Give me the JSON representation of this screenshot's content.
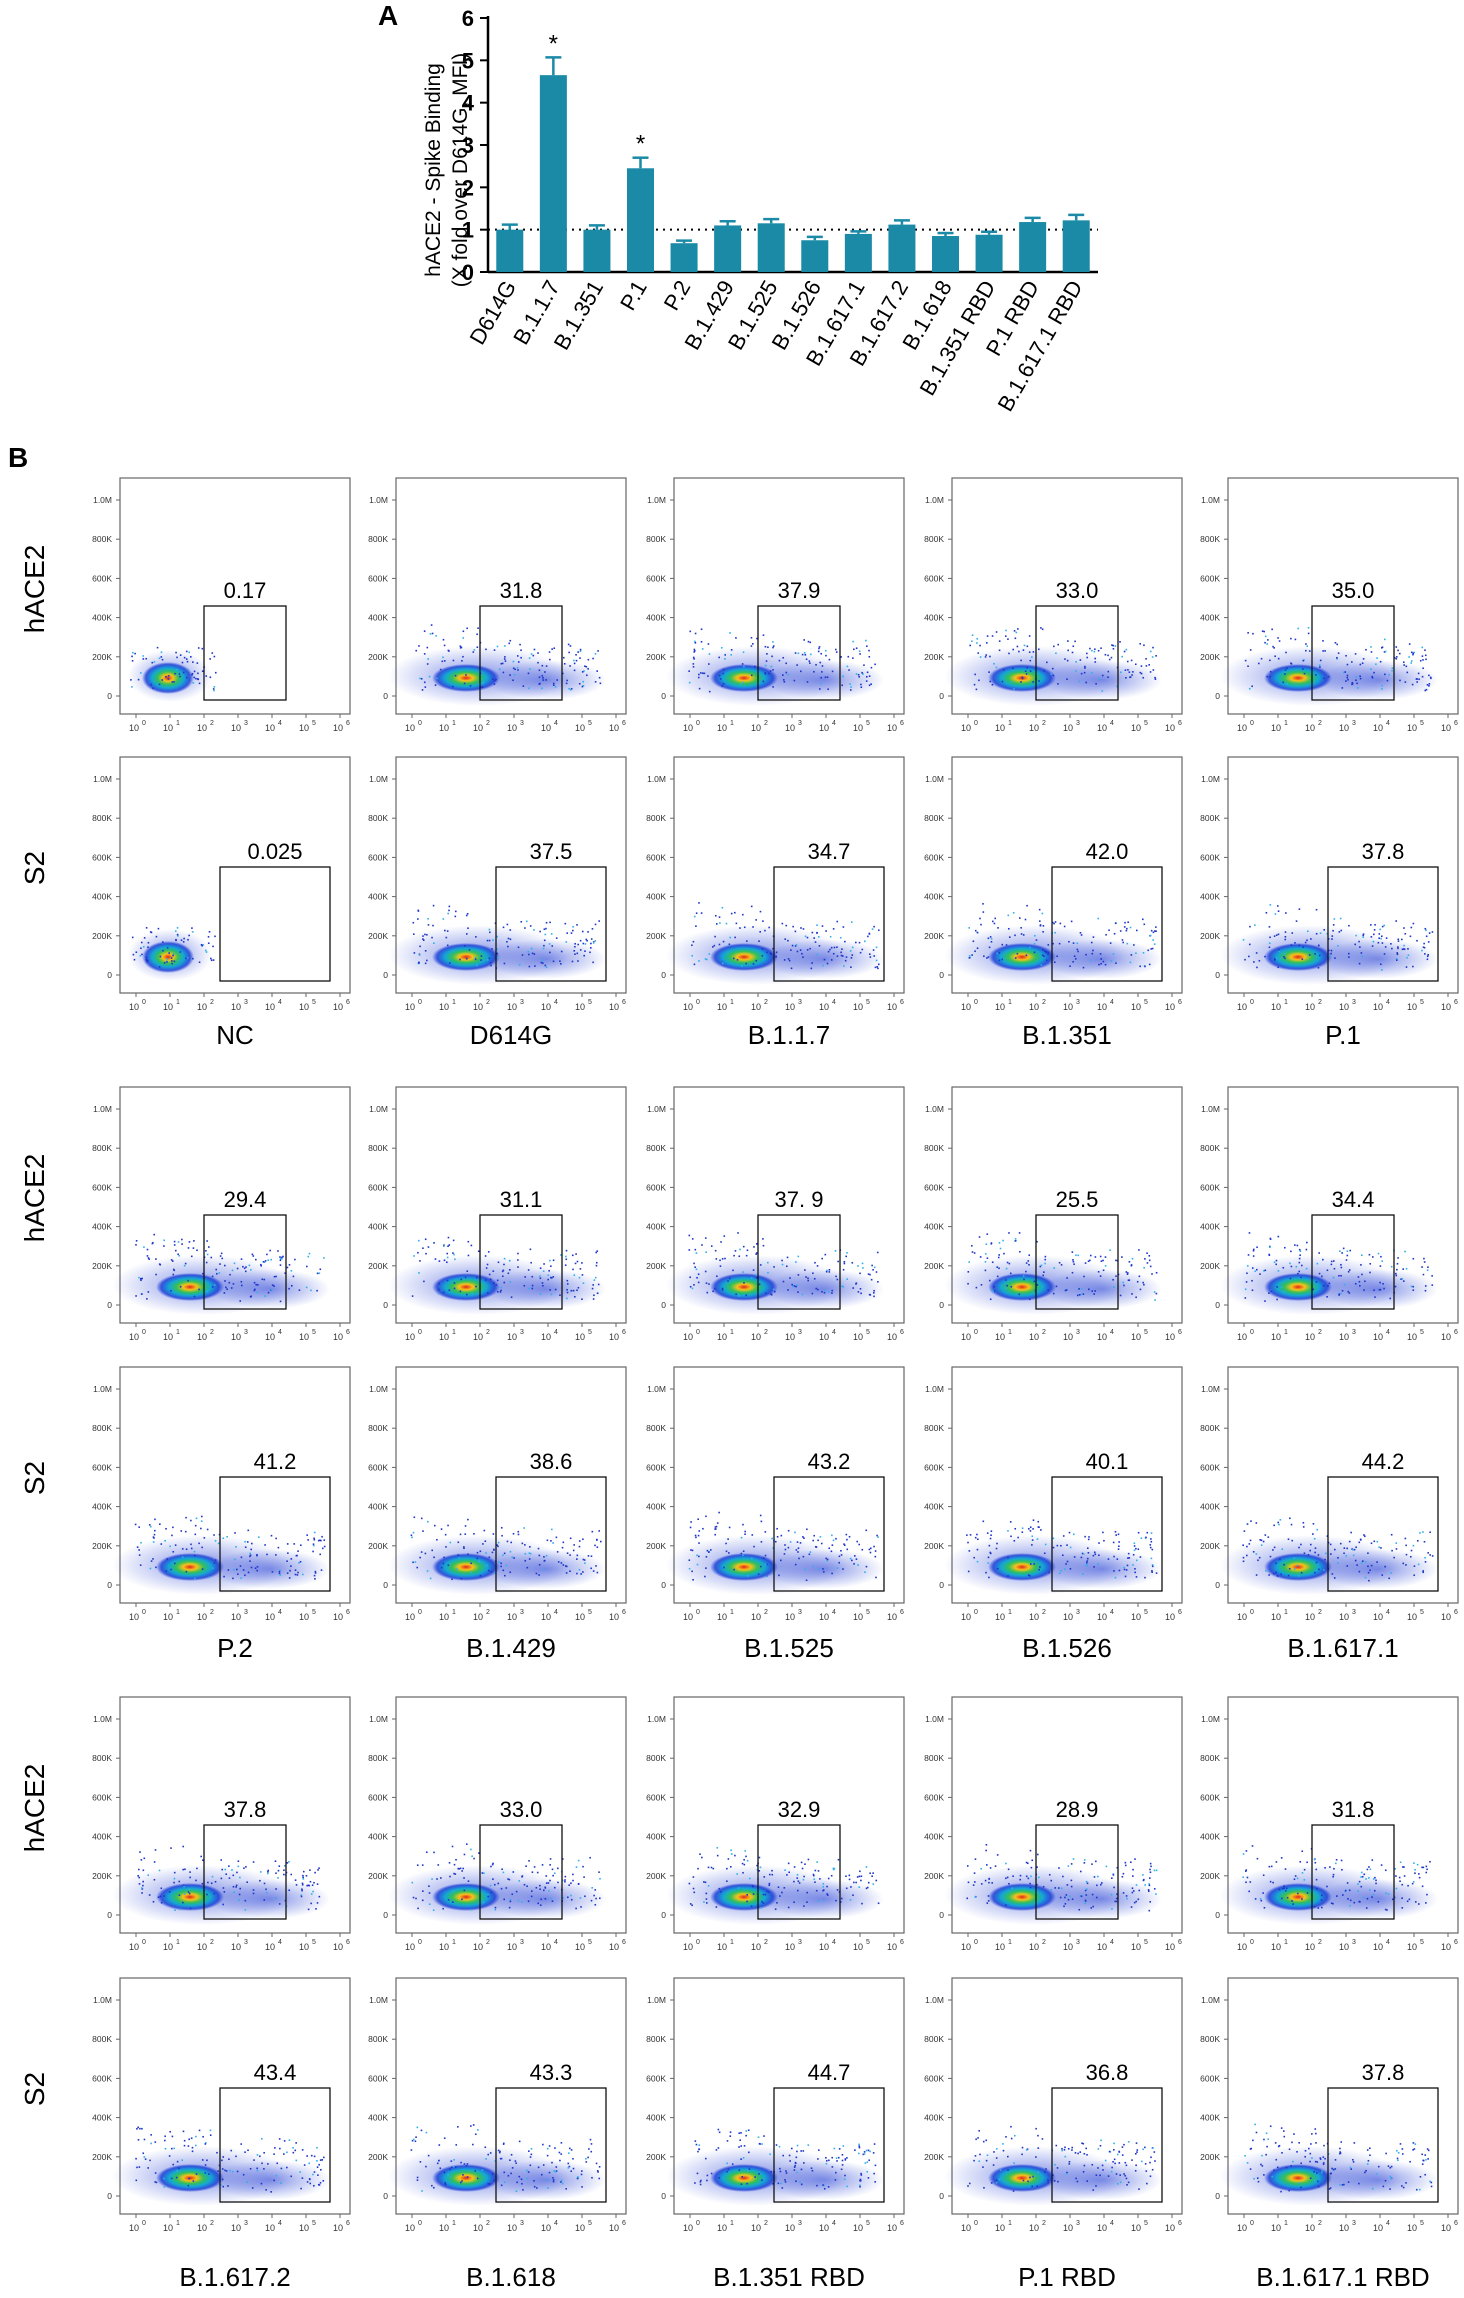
{
  "panel_a": {
    "letter": "A",
    "ylabel_line1": "hACE2 - Spike Binding",
    "ylabel_line2": "(X fold over D614G, MFI)"
  },
  "panel_b": {
    "letter": "B"
  },
  "chart_data": [
    {
      "type": "bar",
      "title": "",
      "ylabel": "hACE2 - Spike Binding (X fold over D614G, MFI)",
      "xlabel": "",
      "ylim": [
        0,
        6
      ],
      "yticks": [
        0,
        1,
        2,
        3,
        4,
        5,
        6
      ],
      "reference_line": 1,
      "categories": [
        "D614G",
        "B.1.1.7",
        "B.1.351",
        "P.1",
        "P.2",
        "B.1.429",
        "B.1.525",
        "B.1.526",
        "B.1.617.1",
        "B.1.617.2",
        "B.1.618",
        "B.1.351 RBD",
        "P.1 RBD",
        "B.1.617.1 RBD"
      ],
      "values": [
        1.0,
        4.65,
        1.0,
        2.45,
        0.68,
        1.1,
        1.15,
        0.75,
        0.9,
        1.12,
        0.85,
        0.88,
        1.18,
        1.22
      ],
      "errors": [
        0.12,
        0.42,
        0.1,
        0.25,
        0.06,
        0.1,
        0.1,
        0.08,
        0.06,
        0.1,
        0.07,
        0.07,
        0.1,
        0.13
      ],
      "significance": [
        "",
        "*",
        "",
        "*",
        "",
        "",
        "",
        "",
        "",
        "",
        "",
        "",
        "",
        ""
      ],
      "color": "#1a8aa6"
    },
    {
      "type": "scatter",
      "subtype": "flow-cytometry-density-plots",
      "row_labels": [
        "hACE2",
        "S2"
      ],
      "y_ticks": [
        "0",
        "200K",
        "400K",
        "600K",
        "800K",
        "1.0M"
      ],
      "x_ticks": [
        "10",
        "10",
        "10",
        "10",
        "10",
        "10",
        "10"
      ],
      "x_tick_exponents": [
        "0",
        "1",
        "2",
        "3",
        "4",
        "5",
        "6"
      ],
      "groups": [
        {
          "samples": [
            "NC",
            "D614G",
            "B.1.1.7",
            "B.1.351",
            "P.1"
          ],
          "hACE2": [
            "0.17",
            "31.8",
            "37.9",
            "33.0",
            "35.0"
          ],
          "S2": [
            "0.025",
            "37.5",
            "34.7",
            "42.0",
            "37.8"
          ]
        },
        {
          "samples": [
            "P.2",
            "B.1.429",
            "B.1.525",
            "B.1.526",
            "B.1.617.1"
          ],
          "hACE2": [
            "29.4",
            "31.1",
            "37. 9",
            "25.5",
            "34.4"
          ],
          "S2": [
            "41.2",
            "38.6",
            "43.2",
            "40.1",
            "44.2"
          ]
        },
        {
          "samples": [
            "B.1.617.2",
            "B.1.618",
            "B.1.351 RBD",
            "P.1 RBD",
            "B.1.617.1 RBD"
          ],
          "hACE2": [
            "37.8",
            "33.0",
            "32.9",
            "28.9",
            "31.8"
          ],
          "S2": [
            "43.4",
            "43.3",
            "44.7",
            "36.8",
            "37.8"
          ]
        }
      ]
    }
  ]
}
